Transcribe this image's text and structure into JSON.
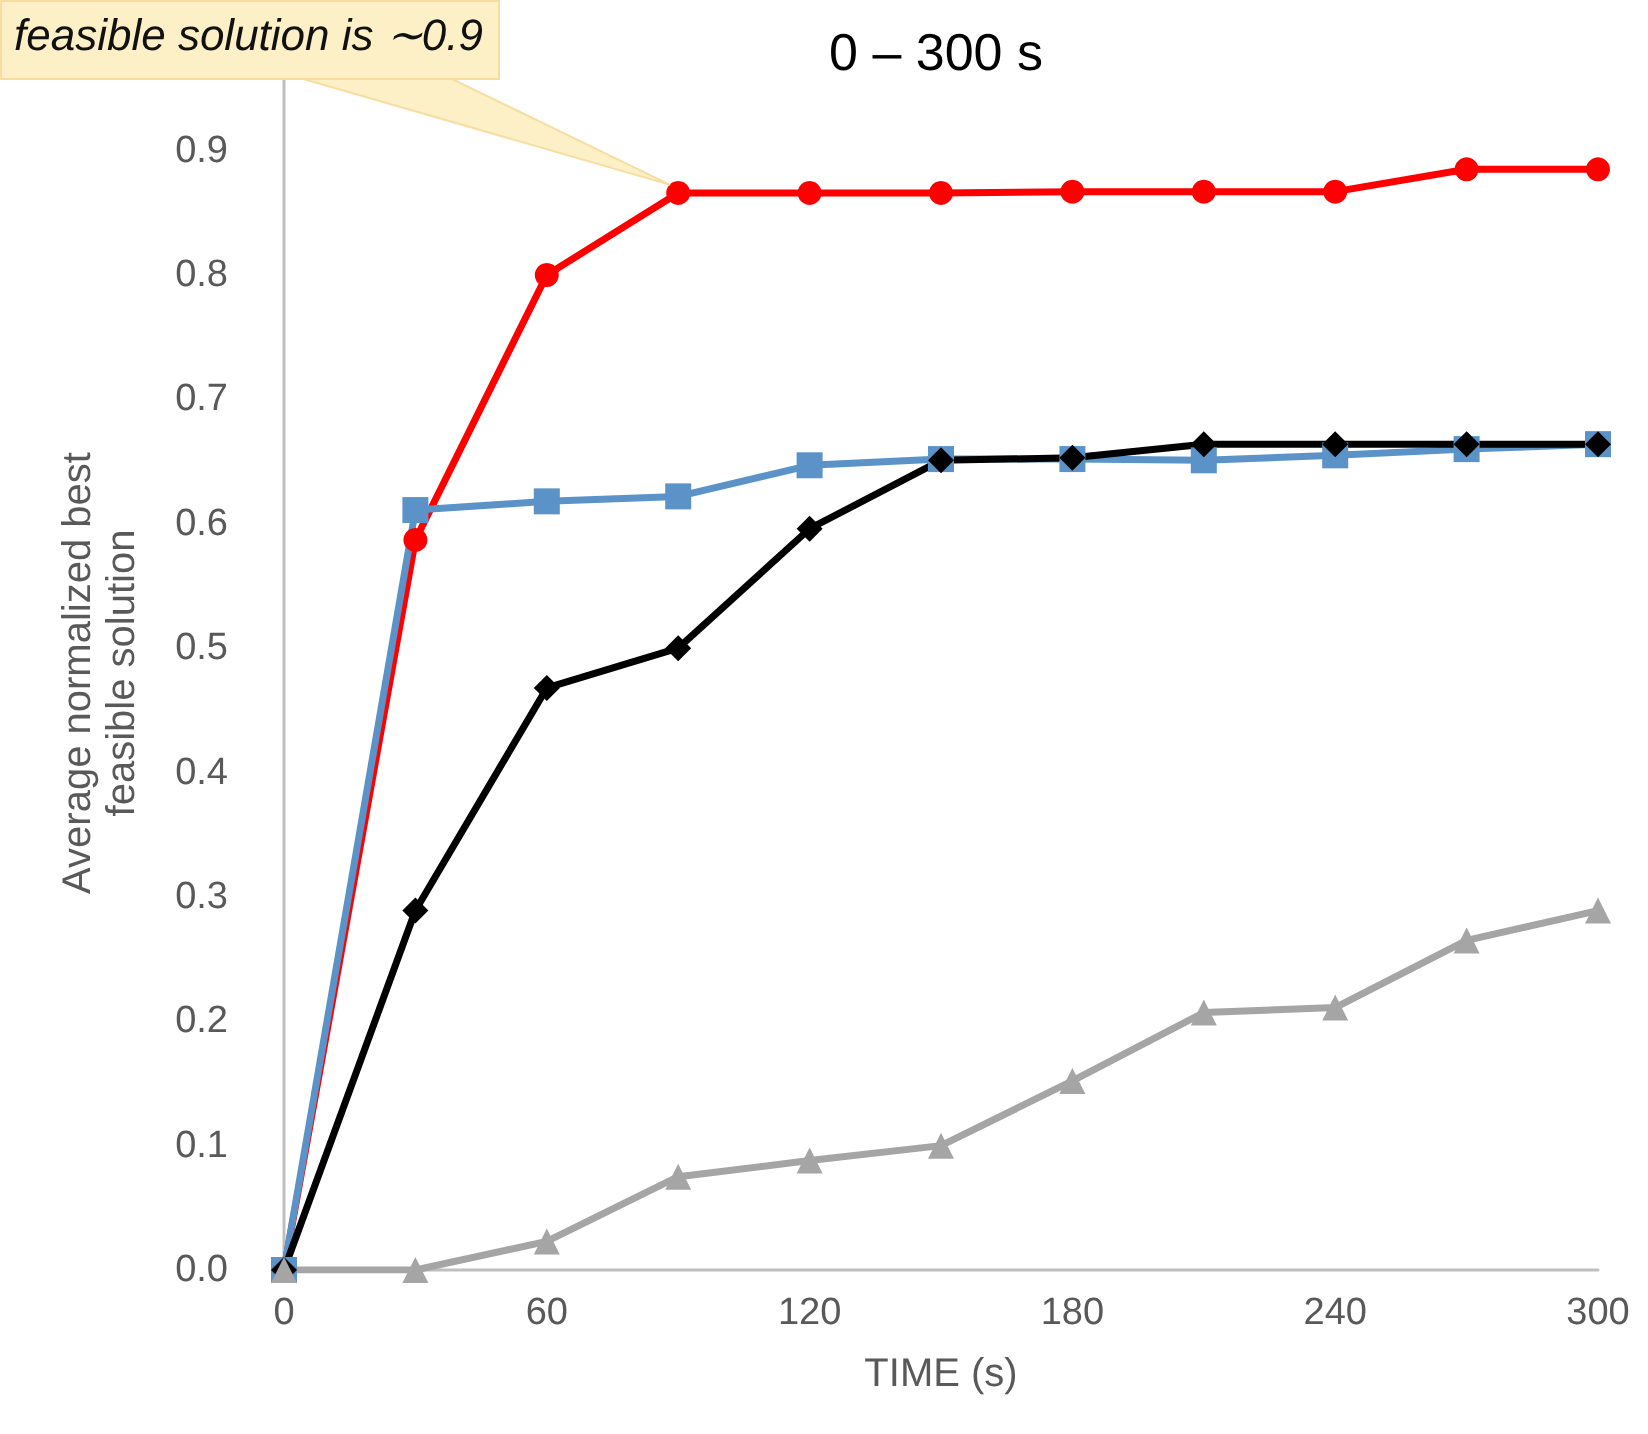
{
  "chart_data": {
    "type": "line",
    "title": "0 – 300 s",
    "xlabel": "TIME (s)",
    "ylabel": "Average normalized best feasible solution",
    "annotations": [
      {
        "text": "feasible solution is ∼0.9",
        "x": 90,
        "y": 0.866
      }
    ],
    "x": [
      0,
      30,
      60,
      90,
      120,
      150,
      180,
      210,
      240,
      270,
      300
    ],
    "series": [
      {
        "color": "#ff0000",
        "marker": "circle",
        "values": [
          0,
          0.587,
          0.8,
          0.866,
          0.866,
          0.866,
          0.867,
          0.867,
          0.867,
          0.885,
          0.885
        ]
      },
      {
        "color": "#5b93c9",
        "marker": "square",
        "values": [
          0,
          0.611,
          0.618,
          0.622,
          0.647,
          0.652,
          0.652,
          0.651,
          0.655,
          0.66,
          0.664
        ]
      },
      {
        "color": "#000000",
        "marker": "diamond",
        "values": [
          0,
          0.289,
          0.468,
          0.5,
          0.596,
          0.651,
          0.653,
          0.664,
          0.664,
          0.664,
          0.664
        ]
      },
      {
        "color": "#a5a5a5",
        "marker": "triangle",
        "values": [
          0,
          0,
          0.023,
          0.075,
          0.088,
          0.1,
          0.152,
          0.207,
          0.211,
          0.265,
          0.289
        ]
      }
    ],
    "xlim": [
      0,
      300
    ],
    "xticks": [
      0,
      60,
      120,
      180,
      240,
      300
    ],
    "ylim": [
      0,
      0.96
    ],
    "yticks": [
      {
        "value": 0,
        "label": "0.0"
      },
      {
        "value": 0.1,
        "label": "0.1"
      },
      {
        "value": 0.2,
        "label": "0.2"
      },
      {
        "value": 0.3,
        "label": "0.3"
      },
      {
        "value": 0.4,
        "label": "0.4"
      },
      {
        "value": 0.5,
        "label": "0.5"
      },
      {
        "value": 0.6,
        "label": "0.6"
      },
      {
        "value": 0.7,
        "label": "0.7"
      },
      {
        "value": 0.8,
        "label": "0.8"
      },
      {
        "value": 0.9,
        "label": "0.9"
      }
    ],
    "grid": false,
    "line_style": "solid"
  }
}
